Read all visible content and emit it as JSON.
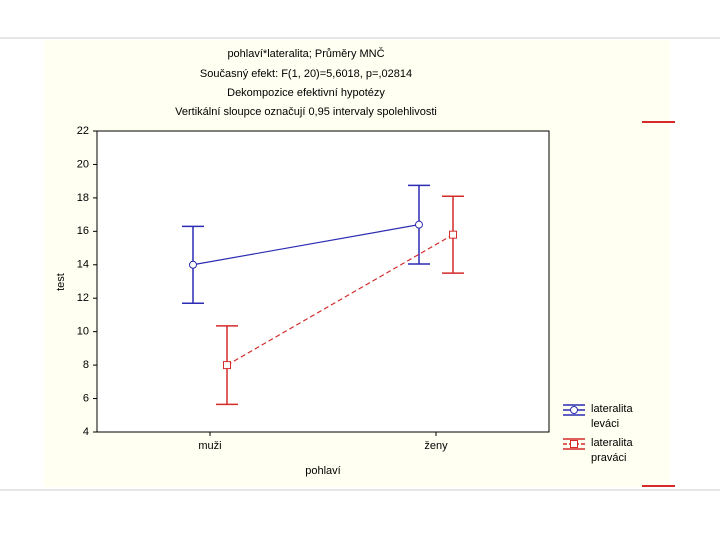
{
  "chart_data": {
    "type": "interaction",
    "title": "pohlaví*lateralita; Průměry MNČ",
    "subtitle": [
      "Současný efekt: F(1, 20)=5,6018, p=,02814",
      "Dekompozice efektivní hypotézy",
      "Vertikální sloupce označují 0,95 intervaly spolehlivosti"
    ],
    "x_label": "pohlaví",
    "y_label": "test",
    "categories": [
      "muži",
      "ženy"
    ],
    "series": [
      {
        "name": "lateralita leváci",
        "color": "#2b2bb3",
        "line_style": "solid",
        "marker": "circle",
        "values": [
          14.0,
          16.4
        ],
        "errors": [
          2.3,
          2.35
        ]
      },
      {
        "name": "lateralita praváci",
        "color": "#d42a2a",
        "line_style": "dashed",
        "marker": "square",
        "values": [
          8.0,
          15.8
        ],
        "errors": [
          2.35,
          2.3
        ]
      }
    ],
    "ylim": [
      4,
      22
    ],
    "yticks": [
      4,
      6,
      8,
      10,
      12,
      14,
      16,
      18,
      20,
      22
    ],
    "grid": false
  }
}
